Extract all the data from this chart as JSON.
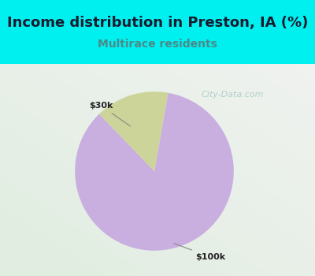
{
  "title": "Income distribution in Preston, IA (%)",
  "subtitle": "Multirace residents",
  "title_color": "#1a1a2e",
  "subtitle_color": "#4a8a8a",
  "title_bg_color": "#00f0f0",
  "chart_bg_color": "#e8f5e8",
  "border_color": "#00f0f0",
  "slices": [
    {
      "label": "$100k",
      "value": 85,
      "color": "#c9aee0"
    },
    {
      "label": "$30k",
      "value": 15,
      "color": "#cdd49a"
    }
  ],
  "label_fontsize": 8,
  "title_fontsize": 13,
  "subtitle_fontsize": 10,
  "watermark_text": "City-Data.com",
  "watermark_color": "#aac8c8",
  "annotation_color": "#888888",
  "label_color": "#222222"
}
